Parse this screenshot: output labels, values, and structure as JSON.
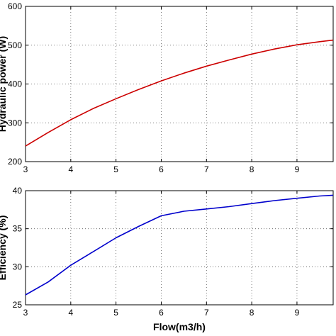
{
  "chart_data": [
    {
      "type": "line",
      "title": "",
      "xlabel": "",
      "ylabel": "Hydraulic power (W)",
      "xlim": [
        3,
        9.8
      ],
      "ylim": [
        200,
        600
      ],
      "xticks": [
        "3",
        "4",
        "5",
        "6",
        "7",
        "8",
        "9"
      ],
      "yticks": [
        "200",
        "300",
        "400",
        "500",
        "600"
      ],
      "grid": true,
      "series": [
        {
          "color": "#cc0000",
          "x": [
            3,
            3.5,
            4,
            4.5,
            5,
            5.5,
            6,
            6.5,
            7,
            7.5,
            8,
            8.5,
            9,
            9.5,
            9.8
          ],
          "y": [
            240,
            275,
            308,
            337,
            362,
            386,
            408,
            428,
            446,
            462,
            477,
            490,
            501,
            509,
            513
          ]
        }
      ]
    },
    {
      "type": "line",
      "title": "",
      "xlabel": "Flow(m3/h)",
      "ylabel": "Efficiency (%)",
      "xlim": [
        3,
        9.8
      ],
      "ylim": [
        25,
        40
      ],
      "xticks": [
        "3",
        "4",
        "5",
        "6",
        "7",
        "8",
        "9"
      ],
      "yticks": [
        "25",
        "30",
        "35",
        "40"
      ],
      "grid": true,
      "series": [
        {
          "color": "#0000cc",
          "x": [
            3,
            3.5,
            4,
            4.5,
            5,
            5.5,
            6,
            6.5,
            7,
            7.5,
            8,
            8.5,
            9,
            9.5,
            9.8
          ],
          "y": [
            26.3,
            28.0,
            30.2,
            32.0,
            33.8,
            35.3,
            36.7,
            37.3,
            37.6,
            37.9,
            38.3,
            38.7,
            39.0,
            39.3,
            39.4
          ]
        }
      ]
    }
  ]
}
